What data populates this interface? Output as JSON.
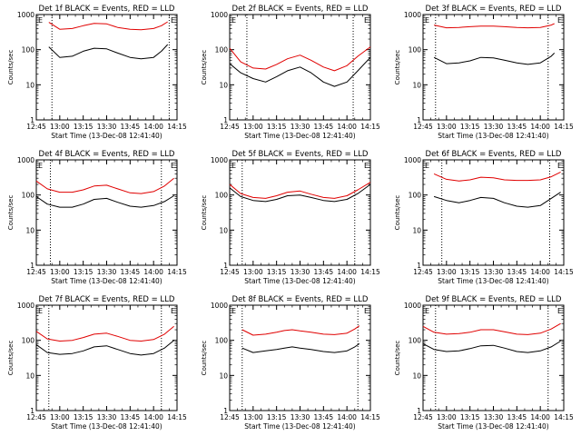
{
  "colors": {
    "events": "#000000",
    "lld": "#e00000",
    "axis": "#000000",
    "marker": "#000000"
  },
  "chart_data": [
    {
      "type": "line",
      "title": "Det 1f BLACK = Events, RED = LLD",
      "xlabel": "Start Time (13-Dec-08 12:41:40)",
      "ylabel": "Counts/sec",
      "yscale": "log",
      "ylim": [
        1,
        1000
      ],
      "xlim": [
        "12:45",
        "14:15"
      ],
      "x_ticks": [
        "12:45",
        "13:00",
        "13:15",
        "13:30",
        "13:45",
        "14:00",
        "14:15"
      ],
      "y_ticks": [
        "1",
        "10",
        "100",
        "1000"
      ],
      "corner_labels": [
        "E",
        "E"
      ],
      "marker_times": [
        "12:55",
        "14:10"
      ],
      "x": [
        "12:53",
        "13:00",
        "13:08",
        "13:15",
        "13:22",
        "13:30",
        "13:37",
        "13:45",
        "13:52",
        "14:00",
        "14:05",
        "14:09"
      ],
      "series": [
        {
          "name": "Events",
          "values": [
            120,
            60,
            65,
            90,
            110,
            105,
            80,
            60,
            55,
            60,
            90,
            140
          ]
        },
        {
          "name": "LLD",
          "values": [
            600,
            380,
            400,
            480,
            560,
            540,
            430,
            380,
            370,
            400,
            480,
            620
          ]
        }
      ]
    },
    {
      "type": "line",
      "title": "Det 2f BLACK = Events, RED = LLD",
      "xlabel": "Start Time (13-Dec-08 12:41:40)",
      "ylabel": "Counts/sec",
      "yscale": "log",
      "ylim": [
        1,
        1000
      ],
      "xlim": [
        "12:45",
        "14:15"
      ],
      "x_ticks": [
        "12:45",
        "13:00",
        "13:15",
        "13:30",
        "13:45",
        "14:00",
        "14:15"
      ],
      "y_ticks": [
        "1",
        "10",
        "100",
        "1000"
      ],
      "corner_labels": [
        "E",
        "E"
      ],
      "marker_times": [
        "12:56",
        "14:04"
      ],
      "x": [
        "12:45",
        "12:52",
        "13:00",
        "13:08",
        "13:15",
        "13:22",
        "13:30",
        "13:37",
        "13:45",
        "13:52",
        "14:00",
        "14:07",
        "14:15"
      ],
      "series": [
        {
          "name": "Events",
          "values": [
            40,
            22,
            15,
            12,
            17,
            25,
            32,
            22,
            12,
            9,
            12,
            25,
            60
          ]
        },
        {
          "name": "LLD",
          "values": [
            110,
            45,
            30,
            28,
            38,
            55,
            70,
            50,
            32,
            25,
            35,
            65,
            120
          ]
        }
      ]
    },
    {
      "type": "line",
      "title": "Det 3f BLACK = Events, RED = LLD",
      "xlabel": "Start Time (13-Dec-08 12:41:40)",
      "ylabel": "Counts/sec",
      "yscale": "log",
      "ylim": [
        1,
        1000
      ],
      "xlim": [
        "12:45",
        "14:15"
      ],
      "x_ticks": [
        "12:45",
        "13:00",
        "13:15",
        "13:30",
        "13:45",
        "14:00",
        "14:15"
      ],
      "y_ticks": [
        "1",
        "10",
        "100",
        "1000"
      ],
      "corner_labels": [
        "E",
        "E"
      ],
      "marker_times": [
        "12:53",
        "14:05"
      ],
      "x": [
        "12:52",
        "13:00",
        "13:08",
        "13:15",
        "13:22",
        "13:30",
        "13:37",
        "13:45",
        "13:52",
        "14:00",
        "14:07",
        "14:09"
      ],
      "series": [
        {
          "name": "Events",
          "values": [
            60,
            40,
            42,
            48,
            60,
            58,
            50,
            42,
            38,
            42,
            65,
            80
          ]
        },
        {
          "name": "LLD",
          "values": [
            500,
            420,
            430,
            450,
            470,
            470,
            450,
            430,
            420,
            430,
            500,
            550
          ]
        }
      ]
    },
    {
      "type": "line",
      "title": "Det 4f BLACK = Events, RED = LLD",
      "xlabel": "Start Time (13-Dec-08 12:41:40)",
      "ylabel": "Counts/sec",
      "yscale": "log",
      "ylim": [
        1,
        1000
      ],
      "xlim": [
        "12:45",
        "14:15"
      ],
      "x_ticks": [
        "12:45",
        "13:00",
        "13:15",
        "13:30",
        "13:45",
        "14:00",
        "14:15"
      ],
      "y_ticks": [
        "1",
        "10",
        "100",
        "1000"
      ],
      "corner_labels": [
        "E",
        "E"
      ],
      "marker_times": [
        "12:54",
        "14:05"
      ],
      "x": [
        "12:45",
        "12:52",
        "13:00",
        "13:08",
        "13:15",
        "13:22",
        "13:30",
        "13:37",
        "13:45",
        "13:52",
        "14:00",
        "14:07",
        "14:13"
      ],
      "series": [
        {
          "name": "Events",
          "values": [
            90,
            55,
            45,
            45,
            55,
            75,
            80,
            62,
            48,
            45,
            50,
            65,
            95
          ]
        },
        {
          "name": "LLD",
          "values": [
            250,
            150,
            120,
            120,
            140,
            180,
            190,
            150,
            115,
            110,
            125,
            180,
            300
          ]
        }
      ]
    },
    {
      "type": "line",
      "title": "Det 5f BLACK = Events, RED = LLD",
      "xlabel": "Start Time (13-Dec-08 12:41:40)",
      "ylabel": "Counts/sec",
      "yscale": "log",
      "ylim": [
        1,
        1000
      ],
      "xlim": [
        "12:45",
        "14:15"
      ],
      "x_ticks": [
        "12:45",
        "13:00",
        "13:15",
        "13:30",
        "13:45",
        "14:00",
        "14:15"
      ],
      "y_ticks": [
        "1",
        "10",
        "100",
        "1000"
      ],
      "corner_labels": [
        "E",
        "E"
      ],
      "marker_times": [
        "12:53",
        "14:05"
      ],
      "x": [
        "12:45",
        "12:52",
        "13:00",
        "13:08",
        "13:15",
        "13:22",
        "13:30",
        "13:37",
        "13:45",
        "13:52",
        "14:00",
        "14:07",
        "14:15"
      ],
      "series": [
        {
          "name": "Events",
          "values": [
            160,
            90,
            70,
            65,
            75,
            95,
            100,
            85,
            70,
            65,
            75,
            110,
            200
          ]
        },
        {
          "name": "LLD",
          "values": [
            200,
            110,
            85,
            80,
            95,
            120,
            130,
            105,
            85,
            80,
            95,
            140,
            230
          ]
        }
      ]
    },
    {
      "type": "line",
      "title": "Det 6f BLACK = Events, RED = LLD",
      "xlabel": "Start Time (13-Dec-08 12:41:40)",
      "ylabel": "Counts/sec",
      "yscale": "log",
      "ylim": [
        1,
        1000
      ],
      "xlim": [
        "12:45",
        "14:15"
      ],
      "x_ticks": [
        "12:45",
        "13:00",
        "13:15",
        "13:30",
        "13:45",
        "14:00",
        "14:15"
      ],
      "y_ticks": [
        "1",
        "10",
        "100",
        "1000"
      ],
      "corner_labels": [
        "E",
        "E"
      ],
      "marker_times": [
        "12:57",
        "14:06"
      ],
      "x": [
        "12:52",
        "13:00",
        "13:08",
        "13:15",
        "13:22",
        "13:30",
        "13:37",
        "13:45",
        "13:52",
        "14:00",
        "14:07",
        "14:13"
      ],
      "series": [
        {
          "name": "Events",
          "values": [
            90,
            70,
            60,
            70,
            85,
            80,
            60,
            48,
            45,
            50,
            80,
            120
          ]
        },
        {
          "name": "LLD",
          "values": [
            400,
            280,
            250,
            270,
            320,
            310,
            270,
            260,
            260,
            270,
            330,
            450
          ]
        }
      ]
    },
    {
      "type": "line",
      "title": "Det 7f BLACK = Events, RED = LLD",
      "xlabel": "Start Time (13-Dec-08 12:41:40)",
      "ylabel": "Counts/sec",
      "yscale": "log",
      "ylim": [
        1,
        1000
      ],
      "xlim": [
        "12:45",
        "14:15"
      ],
      "x_ticks": [
        "12:45",
        "13:00",
        "13:15",
        "13:30",
        "13:45",
        "14:00",
        "14:15"
      ],
      "y_ticks": [
        "1",
        "10",
        "100",
        "1000"
      ],
      "corner_labels": [
        "E",
        "E"
      ],
      "marker_times": [
        "12:53",
        "14:05"
      ],
      "x": [
        "12:45",
        "12:52",
        "13:00",
        "13:08",
        "13:15",
        "13:22",
        "13:30",
        "13:37",
        "13:45",
        "13:52",
        "14:00",
        "14:07",
        "14:13"
      ],
      "series": [
        {
          "name": "Events",
          "values": [
            75,
            45,
            40,
            42,
            50,
            65,
            70,
            55,
            42,
            38,
            42,
            60,
            100
          ]
        },
        {
          "name": "LLD",
          "values": [
            180,
            110,
            95,
            100,
            120,
            150,
            160,
            130,
            100,
            95,
            105,
            150,
            250
          ]
        }
      ]
    },
    {
      "type": "line",
      "title": "Det 8f BLACK = Events, RED = LLD",
      "xlabel": "Start Time (13-Dec-08 12:41:40)",
      "ylabel": "Counts/sec",
      "yscale": "log",
      "ylim": [
        1,
        1000
      ],
      "xlim": [
        "12:45",
        "14:15"
      ],
      "x_ticks": [
        "12:45",
        "13:00",
        "13:15",
        "13:30",
        "13:45",
        "14:00",
        "14:15"
      ],
      "y_ticks": [
        "1",
        "10",
        "100",
        "1000"
      ],
      "corner_labels": [
        "E",
        "E"
      ],
      "marker_times": [
        "12:53",
        "14:07"
      ],
      "x": [
        "12:53",
        "13:00",
        "13:08",
        "13:15",
        "13:20",
        "13:25",
        "13:30",
        "13:37",
        "13:45",
        "13:52",
        "14:00",
        "14:05",
        "14:08"
      ],
      "series": [
        {
          "name": "Events",
          "values": [
            60,
            45,
            50,
            55,
            60,
            65,
            60,
            55,
            48,
            45,
            50,
            65,
            80
          ]
        },
        {
          "name": "LLD",
          "values": [
            200,
            140,
            150,
            170,
            190,
            200,
            185,
            170,
            150,
            145,
            160,
            210,
            260
          ]
        }
      ]
    },
    {
      "type": "line",
      "title": "Det 9f BLACK = Events, RED = LLD",
      "xlabel": "Start Time (13-Dec-08 12:41:40)",
      "ylabel": "Counts/sec",
      "yscale": "log",
      "ylim": [
        1,
        1000
      ],
      "xlim": [
        "12:45",
        "14:15"
      ],
      "x_ticks": [
        "12:45",
        "13:00",
        "13:15",
        "13:30",
        "13:45",
        "14:00",
        "14:15"
      ],
      "y_ticks": [
        "1",
        "10",
        "100",
        "1000"
      ],
      "corner_labels": [
        "E",
        "E"
      ],
      "marker_times": [
        "12:53",
        "14:05"
      ],
      "x": [
        "12:45",
        "12:52",
        "13:00",
        "13:08",
        "13:15",
        "13:22",
        "13:30",
        "13:37",
        "13:45",
        "13:52",
        "14:00",
        "14:07",
        "14:13"
      ],
      "series": [
        {
          "name": "Events",
          "values": [
            80,
            55,
            48,
            50,
            58,
            70,
            72,
            60,
            48,
            45,
            50,
            65,
            95
          ]
        },
        {
          "name": "LLD",
          "values": [
            250,
            170,
            150,
            155,
            170,
            200,
            200,
            175,
            150,
            145,
            160,
            210,
            300
          ]
        }
      ]
    }
  ]
}
